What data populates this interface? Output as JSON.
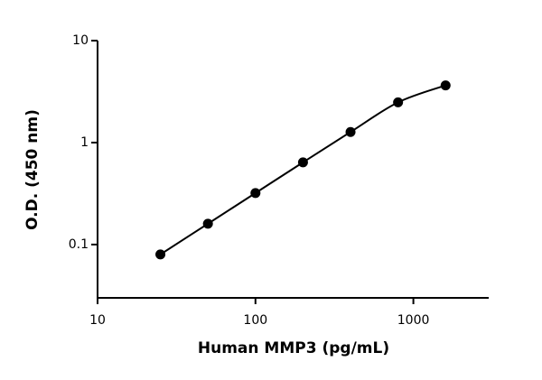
{
  "chart_data": {
    "type": "scatter",
    "x_label": "Human MMP3 (pg/mL)",
    "y_label": "O.D. (450 nm)",
    "x": [
      25,
      50,
      100,
      200,
      400,
      800,
      1600
    ],
    "values": [
      0.08,
      0.16,
      0.32,
      0.64,
      1.27,
      2.48,
      3.64
    ],
    "color": "#000000",
    "xlim": [
      10,
      3000
    ],
    "xticks": [
      10,
      100,
      1000
    ],
    "ylim": [
      0.03,
      10
    ],
    "yticks": [
      0.1,
      1,
      10
    ],
    "xscale": "log",
    "yscale": "log",
    "fit_curve": true,
    "grid": false
  }
}
